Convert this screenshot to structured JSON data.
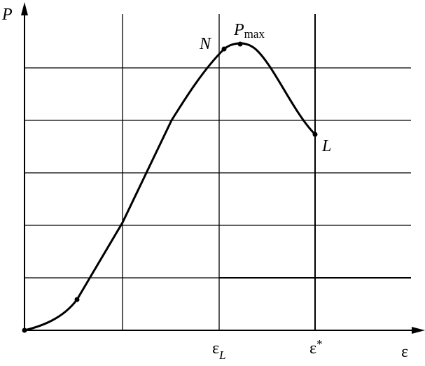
{
  "axes": {
    "y": {
      "text": "P"
    },
    "x": {
      "text": "ε"
    }
  },
  "x_marks": [
    {
      "text": "ε",
      "sub": "L"
    },
    {
      "text": "ε",
      "sup": "*"
    }
  ],
  "points": [
    {
      "text": "N"
    },
    {
      "text": "P",
      "sub": "max"
    },
    {
      "text": "L"
    }
  ]
}
